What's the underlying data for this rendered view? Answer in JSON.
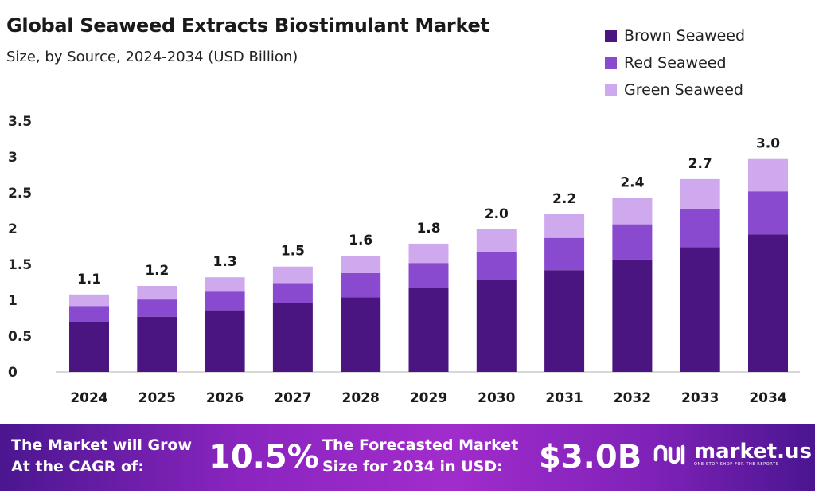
{
  "colors": {
    "brown": "#4a1580",
    "red": "#8a4ad0",
    "green": "#cfa9ee",
    "axis": "#cccccc"
  },
  "chart_data": {
    "type": "bar",
    "stacked": true,
    "title": "Global Seaweed Extracts Biostimulant Market",
    "subtitle": "Size, by Source, 2024-2034 (USD Billion)",
    "categories": [
      "2024",
      "2025",
      "2026",
      "2027",
      "2028",
      "2029",
      "2030",
      "2031",
      "2032",
      "2033",
      "2034"
    ],
    "series": [
      {
        "name": "Brown Seaweed",
        "values": [
          0.7,
          0.77,
          0.86,
          0.96,
          1.04,
          1.17,
          1.28,
          1.42,
          1.57,
          1.74,
          1.92
        ]
      },
      {
        "name": "Red Seaweed",
        "values": [
          0.22,
          0.24,
          0.26,
          0.28,
          0.34,
          0.35,
          0.4,
          0.45,
          0.49,
          0.54,
          0.6
        ]
      },
      {
        "name": "Green Seaweed",
        "values": [
          0.16,
          0.19,
          0.2,
          0.23,
          0.24,
          0.27,
          0.31,
          0.33,
          0.37,
          0.41,
          0.45
        ]
      }
    ],
    "totals_labels": [
      "1.1",
      "1.2",
      "1.3",
      "1.5",
      "1.6",
      "1.8",
      "2.0",
      "2.2",
      "2.4",
      "2.7",
      "3.0"
    ],
    "yticks": [
      "0",
      "0.5",
      "1",
      "1.5",
      "2",
      "2.5",
      "3",
      "3.5"
    ],
    "ylim": [
      0,
      3.5
    ],
    "grid": false,
    "legend_position": "top-right"
  },
  "footer": {
    "cagr_text_line1": "The Market will Grow",
    "cagr_text_line2": "At the CAGR of:",
    "cagr_value": "10.5%",
    "forecast_text_line1": "The Forecasted Market",
    "forecast_text_line2": "Size for 2034 in USD:",
    "forecast_value": "$3.0B",
    "brand": "market.us",
    "brand_tagline": "ONE STOP SHOP FOR THE REPORTS"
  }
}
